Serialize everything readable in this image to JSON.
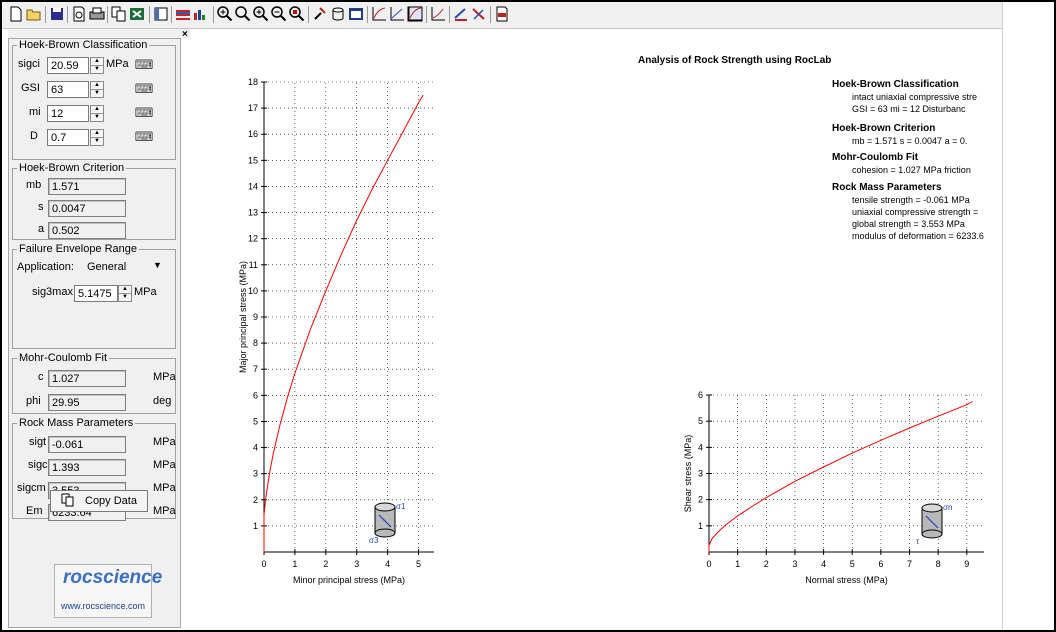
{
  "toolbar": {
    "icons": [
      "new-icon",
      "open-icon",
      "save-icon",
      "print-preview-icon",
      "print-icon",
      "copy-icon",
      "export-excel-icon",
      "sidebar-icon",
      "chart-icon",
      "bar-chart-icon",
      "zoom-all-icon",
      "zoom-icon",
      "zoom-in-icon",
      "zoom-out-icon",
      "zoom-window-icon",
      "probe-icon",
      "cylinder-icon",
      "table-icon",
      "plot-icon-1",
      "plot-icon-2",
      "plot-icon-3",
      "plot-icon-4",
      "parameters-icon",
      "calculator-icon",
      "pdf-icon"
    ]
  },
  "panel": {
    "close": "×",
    "hb_classification": {
      "title": "Hoek-Brown Classification",
      "rows": [
        {
          "label": "sigci",
          "value": "20.59",
          "unit": "MPa"
        },
        {
          "label": "GSI",
          "value": "63",
          "unit": ""
        },
        {
          "label": "mi",
          "value": "12",
          "unit": ""
        },
        {
          "label": "D",
          "value": "0.7",
          "unit": ""
        }
      ]
    },
    "hb_criterion": {
      "title": "Hoek-Brown Criterion",
      "rows": [
        {
          "label": "mb",
          "value": "1.571"
        },
        {
          "label": "s",
          "value": "0.0047"
        },
        {
          "label": "a",
          "value": "0.502"
        }
      ]
    },
    "envelope": {
      "title": "Failure Envelope Range",
      "application_label": "Application:",
      "application_value": "General",
      "sig3max_label": "sig3max",
      "sig3max_value": "5.1475",
      "sig3max_unit": "MPa"
    },
    "mohr": {
      "title": "Mohr-Coulomb Fit",
      "rows": [
        {
          "label": "c",
          "value": "1.027",
          "unit": "MPa"
        },
        {
          "label": "phi",
          "value": "29.95",
          "unit": "deg"
        }
      ]
    },
    "rockmass": {
      "title": "Rock Mass Parameters",
      "rows": [
        {
          "label": "sigt",
          "value": "-0.061",
          "unit": "MPa"
        },
        {
          "label": "sigc",
          "value": "1.393",
          "unit": "MPa"
        },
        {
          "label": "sigcm",
          "value": "3.553",
          "unit": "MPa"
        },
        {
          "label": "Em",
          "value": "6233.64",
          "unit": "MPa"
        }
      ]
    },
    "copy_label": "Copy Data",
    "logo_word": "rocscience",
    "logo_url": "www.rocscience.com"
  },
  "report": {
    "title": "Analysis of Rock Strength using RocLab",
    "sections": [
      {
        "heading": "Hoek-Brown Classification",
        "lines": [
          "intact uniaxial compressive stre",
          "GSI = 63    mi = 12    Disturbanc"
        ]
      },
      {
        "heading": "Hoek-Brown Criterion",
        "lines": [
          "mb = 1.571    s = 0.0047    a = 0."
        ]
      },
      {
        "heading": "Mohr-Coulomb Fit",
        "lines": [
          "cohesion = 1.027 MPa    friction"
        ]
      },
      {
        "heading": "Rock Mass Parameters",
        "lines": [
          "tensile strength = -0.061 MPa",
          "uniaxial compressive strength =",
          "global strength = 3.553 MPa",
          "modulus of deformation = 6233.6"
        ]
      }
    ]
  },
  "chart_data": [
    {
      "type": "line",
      "xlabel": "Minor principal stress (MPa)",
      "ylabel": "Major principal stress (MPa)",
      "xlim": [
        0,
        5.5
      ],
      "ylim": [
        0,
        18
      ],
      "xticks": [
        0,
        1,
        2,
        3,
        4,
        5
      ],
      "yticks": [
        1,
        2,
        3,
        4,
        5,
        6,
        7,
        8,
        9,
        10,
        11,
        12,
        13,
        14,
        15,
        16,
        17,
        18
      ],
      "grid": true,
      "line_color": "#ff0000",
      "series": [
        {
          "x": [
            -0.061,
            0,
            0.05,
            0.1,
            0.2,
            0.3,
            0.5,
            0.75,
            1,
            1.5,
            2,
            2.5,
            3,
            3.5,
            4,
            4.5,
            5,
            5.1475
          ],
          "y": [
            0,
            1.42,
            1.99,
            2.42,
            3.16,
            3.77,
            4.8,
            5.89,
            6.85,
            8.53,
            10.0,
            11.4,
            12.7,
            13.9,
            15.0,
            16.1,
            17.2,
            17.5
          ]
        }
      ],
      "symbol_labels": [
        "σ1",
        "σ3"
      ]
    },
    {
      "type": "line",
      "xlabel": "Normal stress (MPa)",
      "ylabel": "Shear stress (MPa)",
      "xlim": [
        0,
        9.6
      ],
      "ylim": [
        0,
        6
      ],
      "xticks": [
        0,
        1,
        2,
        3,
        4,
        5,
        6,
        7,
        8,
        9
      ],
      "yticks": [
        1,
        2,
        3,
        4,
        5,
        6
      ],
      "grid": true,
      "line_color": "#ff0000",
      "series": [
        {
          "x": [
            -0.06,
            0,
            0.1,
            0.3,
            0.6,
            1,
            1.5,
            2,
            3,
            4,
            5,
            6,
            7,
            8,
            9,
            9.2
          ],
          "y": [
            0,
            0.25,
            0.5,
            0.75,
            1.05,
            1.38,
            1.74,
            2.08,
            2.7,
            3.25,
            3.78,
            4.27,
            4.74,
            5.19,
            5.63,
            5.75
          ]
        }
      ],
      "symbol_labels": [
        "σn",
        "τ"
      ]
    }
  ]
}
